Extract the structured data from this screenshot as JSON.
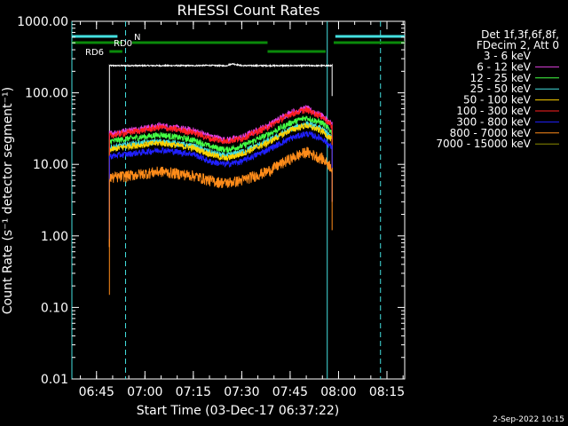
{
  "chart_data": {
    "type": "line",
    "title": "RHESSI Count Rates",
    "xlabel": "Start Time (03-Dec-17 06:37:22)",
    "ylabel": "Count Rate (s⁻¹ detector segment⁻¹)",
    "y_scale": "log",
    "ylim": [
      0.01,
      1000
    ],
    "xlim": [
      "06:37:22",
      "08:20:30"
    ],
    "x_ticks": [
      "06:45",
      "07:00",
      "07:15",
      "07:30",
      "07:45",
      "08:00",
      "08:15"
    ],
    "y_ticks": [
      "0.01",
      "0.10",
      "1.00",
      "10.00",
      "100.00",
      "1000.00"
    ],
    "legend_header": [
      "Det 1f,3f,6f,8f,",
      "FDecim 2, Att 0"
    ],
    "legend_position": "right",
    "series": [
      {
        "name": "3 - 6 keV",
        "color": "#000000",
        "x": [
          "06:49:00",
          "06:55:00",
          "07:05:00",
          "07:15:00",
          "07:20:00",
          "07:25:00",
          "07:27:00",
          "07:30:00",
          "07:40:00",
          "07:50:00",
          "07:58:00"
        ],
        "y": [
          240,
          240,
          240,
          240,
          242,
          238,
          255,
          240,
          240,
          240,
          240
        ]
      },
      {
        "name": "6 - 12 keV",
        "color": "#e040e0",
        "x": [
          "06:49:00",
          "06:55:00",
          "07:05:00",
          "07:15:00",
          "07:20:00",
          "07:25:00",
          "07:30:00",
          "07:38:00",
          "07:45:00",
          "07:50:00",
          "07:55:00",
          "07:58:00"
        ],
        "y": [
          27,
          30,
          35,
          30,
          25,
          22,
          24,
          35,
          53,
          61,
          48,
          36
        ]
      },
      {
        "name": "12 - 25 keV",
        "color": "#44ff44",
        "x": [
          "06:49:00",
          "06:55:00",
          "07:05:00",
          "07:15:00",
          "07:20:00",
          "07:25:00",
          "07:30:00",
          "07:38:00",
          "07:45:00",
          "07:50:00",
          "07:55:00",
          "07:58:00"
        ],
        "y": [
          21,
          23,
          26,
          22,
          18,
          16,
          18,
          26,
          38,
          45,
          38,
          28
        ]
      },
      {
        "name": "25 - 50 keV",
        "color": "#44e0e0",
        "x": [
          "06:49:00",
          "06:55:00",
          "07:05:00",
          "07:15:00",
          "07:20:00",
          "07:25:00",
          "07:30:00",
          "07:38:00",
          "07:45:00",
          "07:50:00",
          "07:55:00",
          "07:58:00"
        ],
        "y": [
          17,
          19,
          21,
          18,
          15,
          13,
          15,
          21,
          31,
          37,
          31,
          23
        ]
      },
      {
        "name": "50 - 100 keV",
        "color": "#ffd200",
        "x": [
          "06:49:00",
          "06:55:00",
          "07:05:00",
          "07:15:00",
          "07:20:00",
          "07:25:00",
          "07:30:00",
          "07:38:00",
          "07:45:00",
          "07:50:00",
          "07:55:00",
          "07:58:00"
        ],
        "y": [
          16,
          18,
          20,
          17,
          14,
          12,
          14,
          20,
          30,
          35,
          29,
          22
        ]
      },
      {
        "name": "100 - 300 keV",
        "color": "#ff2020",
        "x": [
          "06:49:00",
          "06:55:00",
          "07:05:00",
          "07:15:00",
          "07:20:00",
          "07:25:00",
          "07:30:00",
          "07:38:00",
          "07:45:00",
          "07:50:00",
          "07:55:00",
          "07:58:00"
        ],
        "y": [
          25,
          28,
          33,
          28,
          23,
          21,
          23,
          33,
          50,
          58,
          46,
          34
        ]
      },
      {
        "name": "300 - 800 keV",
        "color": "#2020ff",
        "x": [
          "06:49:00",
          "06:55:00",
          "07:05:00",
          "07:15:00",
          "07:20:00",
          "07:25:00",
          "07:30:00",
          "07:38:00",
          "07:45:00",
          "07:50:00",
          "07:55:00",
          "07:58:00"
        ],
        "y": [
          13,
          14,
          16,
          14,
          11,
          10,
          11,
          16,
          23,
          27,
          23,
          17
        ]
      },
      {
        "name": "800 - 7000 keV",
        "color": "#ff8c1a",
        "x": [
          "06:49:00",
          "06:55:00",
          "07:05:00",
          "07:15:00",
          "07:20:00",
          "07:25:00",
          "07:30:00",
          "07:38:00",
          "07:45:00",
          "07:50:00",
          "07:55:00",
          "07:58:00"
        ],
        "y": [
          6.5,
          7,
          8,
          7,
          6,
          5.5,
          6,
          8,
          12,
          15,
          12,
          9
        ]
      },
      {
        "name": "7000 - 15000 keV",
        "color": "#8b8b00",
        "x": [],
        "y": []
      }
    ],
    "segments": [
      {
        "label": "N",
        "color": "#44e0e0",
        "ranges": [
          [
            "06:37:22",
            "06:51:30"
          ],
          [
            "07:59:00",
            "08:20:30"
          ]
        ]
      },
      {
        "label": "RD0",
        "color": "#0a8a0a",
        "ranges": [
          [
            "06:37:22",
            "06:53:00"
          ],
          [
            "06:56:00",
            "07:38:00"
          ],
          [
            "07:58:30",
            "08:20:30"
          ]
        ]
      },
      {
        "label": "RD6",
        "color": "#0a8a0a",
        "ranges": [
          [
            "06:49:00",
            "06:53:00"
          ],
          [
            "07:38:00",
            "07:56:00"
          ]
        ]
      }
    ],
    "vertical_lines": [
      {
        "time": "06:37:22",
        "style": "solid"
      },
      {
        "time": "06:54:00",
        "style": "dashed"
      },
      {
        "time": "07:56:30",
        "style": "solid"
      },
      {
        "time": "08:13:00",
        "style": "dashed"
      }
    ],
    "grid": false
  },
  "footer": {
    "timestamp": "2-Sep-2022 10:15"
  }
}
